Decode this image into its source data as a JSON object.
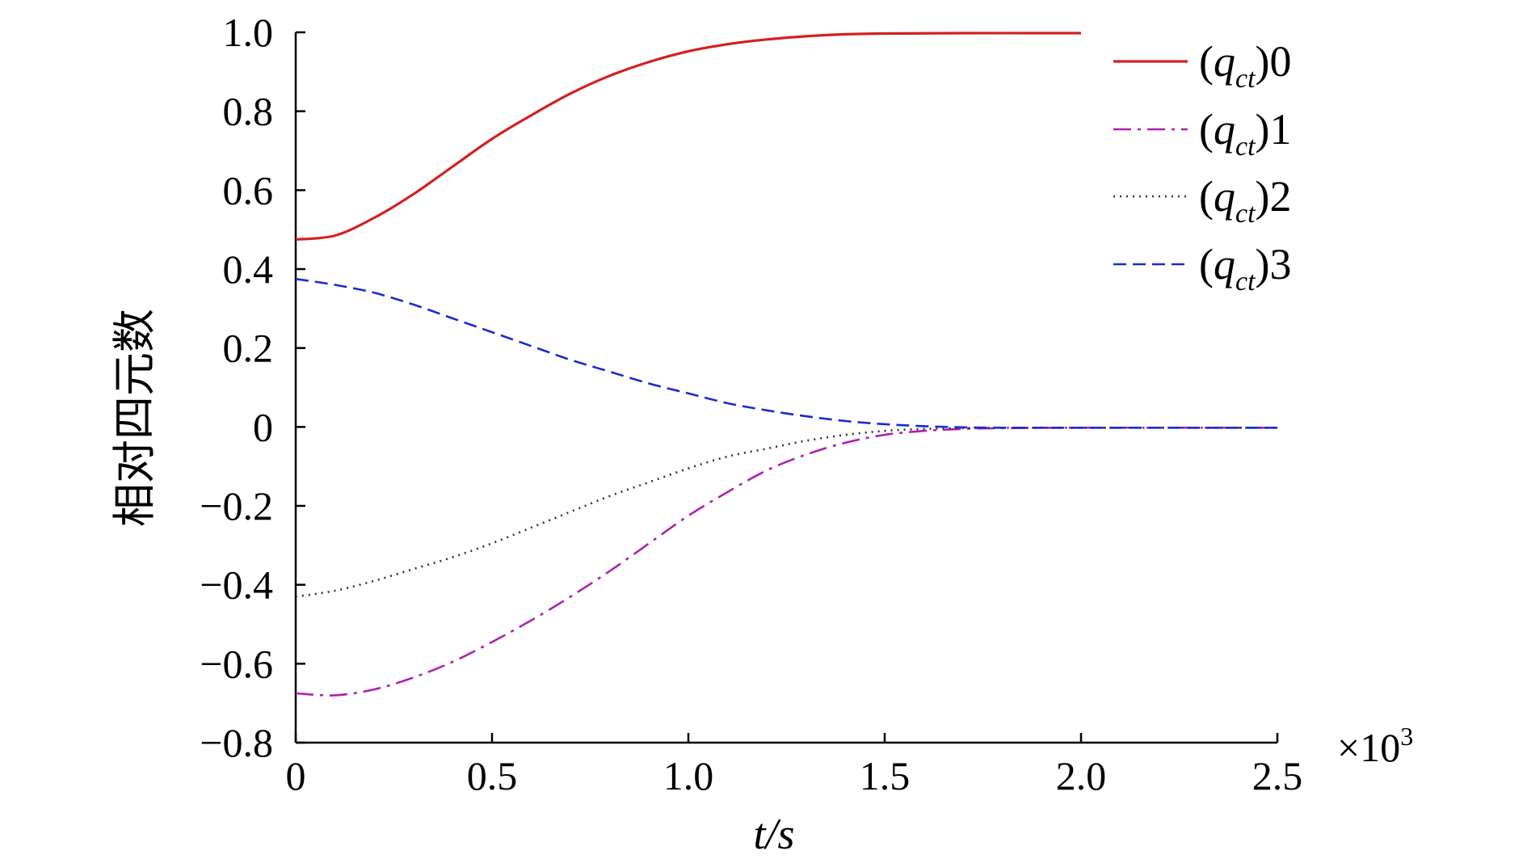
{
  "chart_data": {
    "type": "line",
    "title": "",
    "xlabel": "t/s",
    "ylabel": "相对四元数",
    "x_scale_note": "×10",
    "x_scale_exp": "3",
    "xlim": [
      0,
      2500
    ],
    "ylim": [
      -0.8,
      1.0
    ],
    "x_ticks": [
      0,
      500,
      1000,
      1500,
      2000,
      2500
    ],
    "x_tick_labels": [
      "0",
      "0.5",
      "1.0",
      "1.5",
      "2.0",
      "2.5"
    ],
    "y_ticks": [
      -0.8,
      -0.6,
      -0.4,
      -0.2,
      0,
      0.2,
      0.4,
      0.6,
      0.8,
      1.0
    ],
    "y_tick_labels": [
      "−0.8",
      "−0.6",
      "−0.4",
      "−0.2",
      "0",
      "0.2",
      "0.4",
      "0.6",
      "0.8",
      "1.0"
    ],
    "grid": false,
    "legend_position": "top-right",
    "series": [
      {
        "name": "(q_ct)0",
        "legend_base": "q",
        "legend_sub": "ct",
        "legend_suffix": "0",
        "color": "#d42020",
        "dash": "",
        "x": [
          0,
          100,
          200,
          300,
          400,
          500,
          600,
          700,
          800,
          900,
          1000,
          1100,
          1200,
          1300,
          1400,
          1500,
          1700,
          2000
        ],
        "values": [
          0.475,
          0.485,
          0.53,
          0.59,
          0.66,
          0.73,
          0.79,
          0.845,
          0.89,
          0.925,
          0.952,
          0.97,
          0.982,
          0.99,
          0.995,
          0.997,
          0.998,
          0.998
        ]
      },
      {
        "name": "(q_ct)1",
        "legend_base": "q",
        "legend_sub": "ct",
        "legend_suffix": "1",
        "color": "#b020b0",
        "dash": "22,8,4,8",
        "x": [
          0,
          100,
          200,
          300,
          400,
          500,
          600,
          700,
          800,
          900,
          1000,
          1100,
          1200,
          1300,
          1400,
          1500,
          1600,
          1700,
          1800,
          2000,
          2500
        ],
        "values": [
          -0.675,
          -0.68,
          -0.665,
          -0.635,
          -0.595,
          -0.545,
          -0.49,
          -0.43,
          -0.365,
          -0.295,
          -0.225,
          -0.165,
          -0.11,
          -0.07,
          -0.04,
          -0.02,
          -0.01,
          -0.005,
          -0.003,
          -0.002,
          -0.002
        ]
      },
      {
        "name": "(q_ct)2",
        "legend_base": "q",
        "legend_sub": "ct",
        "legend_suffix": "2",
        "color": "#333333",
        "dash": "2,6",
        "x": [
          0,
          100,
          200,
          300,
          400,
          500,
          600,
          700,
          800,
          900,
          1000,
          1100,
          1200,
          1300,
          1400,
          1500,
          1600,
          1700,
          1800,
          2000,
          2500
        ],
        "values": [
          -0.43,
          -0.415,
          -0.39,
          -0.36,
          -0.33,
          -0.295,
          -0.255,
          -0.215,
          -0.175,
          -0.14,
          -0.105,
          -0.075,
          -0.055,
          -0.035,
          -0.02,
          -0.01,
          -0.005,
          -0.003,
          -0.002,
          -0.002,
          -0.002
        ]
      },
      {
        "name": "(q_ct)3",
        "legend_base": "q",
        "legend_sub": "ct",
        "legend_suffix": "3",
        "color": "#1a2ccc",
        "dash": "16,8",
        "x": [
          0,
          100,
          200,
          300,
          400,
          500,
          600,
          700,
          800,
          900,
          1000,
          1100,
          1200,
          1300,
          1400,
          1500,
          1600,
          1700,
          1800,
          2000,
          2500
        ],
        "values": [
          0.375,
          0.36,
          0.34,
          0.31,
          0.275,
          0.24,
          0.205,
          0.17,
          0.14,
          0.11,
          0.085,
          0.06,
          0.042,
          0.027,
          0.015,
          0.007,
          0.002,
          -0.001,
          -0.002,
          -0.002,
          -0.002
        ]
      }
    ]
  }
}
